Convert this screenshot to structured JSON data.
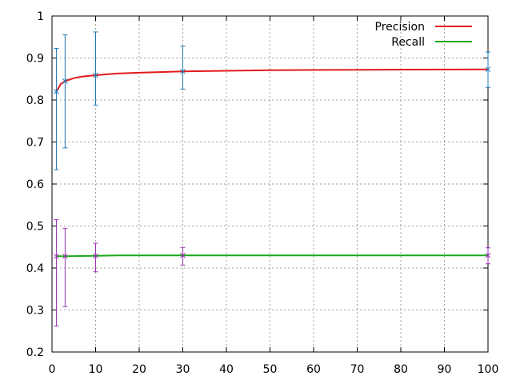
{
  "chart_data": {
    "type": "line",
    "title": "",
    "xlabel": "",
    "ylabel": "",
    "xlim": [
      0,
      100
    ],
    "ylim": [
      0.2,
      1.0
    ],
    "x_ticks": [
      "0",
      "10",
      "20",
      "30",
      "40",
      "50",
      "60",
      "70",
      "80",
      "90",
      "100"
    ],
    "y_ticks": [
      "0.2",
      "0.3",
      "0.4",
      "0.5",
      "0.6",
      "0.7",
      "0.8",
      "0.9",
      "1"
    ],
    "grid": true,
    "legend_position": "top-right",
    "series": [
      {
        "name": "Precision",
        "color": "#e31a1c",
        "x": [
          1,
          2,
          3,
          5,
          7,
          10,
          15,
          20,
          30,
          50,
          70,
          100
        ],
        "y": [
          0.82,
          0.838,
          0.845,
          0.852,
          0.856,
          0.859,
          0.863,
          0.865,
          0.868,
          0.871,
          0.872,
          0.873
        ],
        "error_color": "#1f78b4",
        "error_bars": [
          {
            "x": 1,
            "y": 0.82,
            "low": 0.634,
            "high": 0.923
          },
          {
            "x": 3,
            "y": 0.845,
            "low": 0.686,
            "high": 0.955
          },
          {
            "x": 10,
            "y": 0.859,
            "low": 0.788,
            "high": 0.962
          },
          {
            "x": 30,
            "y": 0.868,
            "low": 0.826,
            "high": 0.928
          },
          {
            "x": 100,
            "y": 0.873,
            "low": 0.83,
            "high": 0.914
          }
        ]
      },
      {
        "name": "Recall",
        "color": "#1aa81a",
        "x": [
          1,
          3,
          10,
          15,
          30,
          100
        ],
        "y": [
          0.428,
          0.428,
          0.429,
          0.43,
          0.43,
          0.43
        ],
        "error_color": "#9b30b4",
        "error_bars": [
          {
            "x": 1,
            "y": 0.428,
            "low": 0.262,
            "high": 0.515
          },
          {
            "x": 3,
            "y": 0.428,
            "low": 0.308,
            "high": 0.494
          },
          {
            "x": 10,
            "y": 0.429,
            "low": 0.391,
            "high": 0.459
          },
          {
            "x": 30,
            "y": 0.43,
            "low": 0.407,
            "high": 0.449
          },
          {
            "x": 100,
            "y": 0.43,
            "low": 0.41,
            "high": 0.448
          }
        ]
      }
    ]
  }
}
